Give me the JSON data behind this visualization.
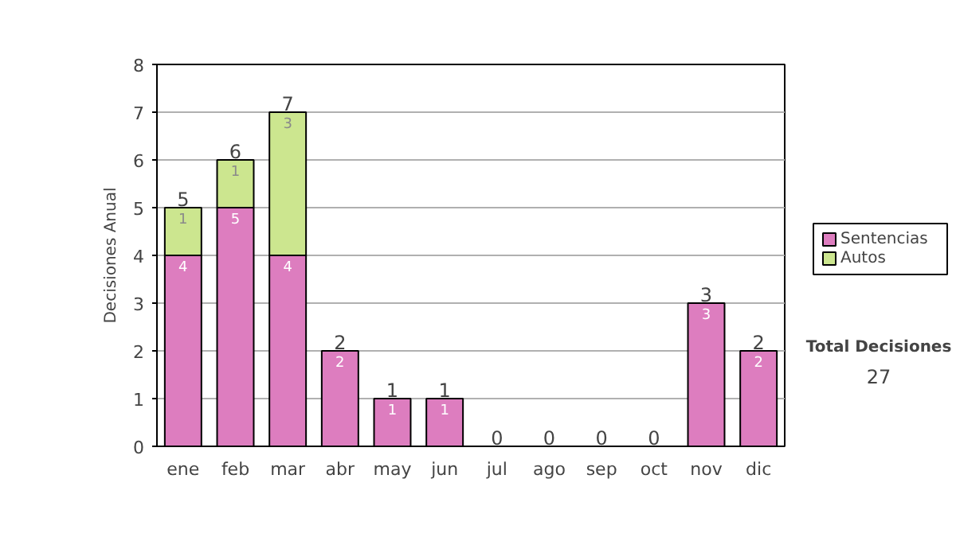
{
  "chart_data": {
    "type": "bar",
    "stacked": true,
    "ylabel": "Decisiones Anual",
    "categories": [
      "ene",
      "feb",
      "mar",
      "abr",
      "may",
      "jun",
      "jul",
      "ago",
      "sep",
      "oct",
      "nov",
      "dic"
    ],
    "series": [
      {
        "name": "Sentencias",
        "color": "#dd7dbf",
        "values": [
          4,
          5,
          4,
          2,
          1,
          1,
          0,
          0,
          0,
          0,
          3,
          2
        ],
        "value_labels": [
          "4",
          "5",
          "4",
          "2",
          "1",
          "1",
          null,
          null,
          null,
          null,
          "3",
          "2"
        ]
      },
      {
        "name": "Autos",
        "color": "#cce68f",
        "values": [
          1,
          1,
          3,
          0,
          0,
          0,
          0,
          0,
          0,
          0,
          0,
          0
        ],
        "value_labels": [
          "1",
          "1",
          "3",
          null,
          null,
          null,
          null,
          null,
          null,
          null,
          null,
          null
        ]
      }
    ],
    "totals": [
      "5",
      "6",
      "7",
      "2",
      "1",
      "1",
      "0",
      "0",
      "0",
      "0",
      "3",
      "2"
    ],
    "ylim": [
      0,
      8
    ],
    "yticks": [
      0,
      1,
      2,
      3,
      4,
      5,
      6,
      7,
      8
    ],
    "grid": "y",
    "legend": "right",
    "annotations": [
      "Total Decisiones",
      "27"
    ]
  }
}
